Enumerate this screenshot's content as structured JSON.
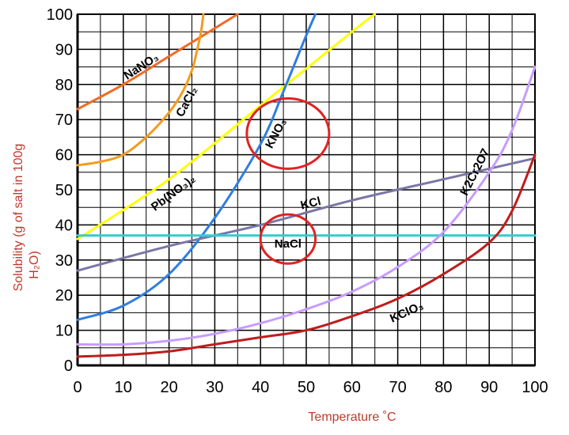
{
  "chart_data": {
    "type": "line",
    "title": "",
    "xlabel": "Temperature ˚C",
    "ylabel_line1": "Solubility (g of salt in 100g",
    "ylabel_line2": "H₂O)",
    "xlim": [
      0,
      100
    ],
    "ylim": [
      0,
      100
    ],
    "x_ticks": [
      "0",
      "10",
      "20",
      "30",
      "40",
      "50",
      "60",
      "70",
      "80",
      "90",
      "100"
    ],
    "y_ticks": [
      "0",
      "10",
      "20",
      "30",
      "40",
      "50",
      "60",
      "70",
      "80",
      "90",
      "100"
    ],
    "grid": true,
    "colors": {
      "NaNO3": "#f26a22",
      "CaCl2": "#f39c1f",
      "Pb(NO3)2": "#ffff00",
      "KNO3": "#2f7de1",
      "KCl": "#7a76a6",
      "NaCl": "#2ecfd0",
      "K2Cr2O7": "#c79cff",
      "KClO3": "#c01c1c",
      "highlight_circle": "#e02222",
      "axis_title": "#c0392b"
    },
    "series": [
      {
        "name": "NaNO3",
        "x": [
          0,
          10,
          20,
          30,
          35
        ],
        "y": [
          73,
          80,
          88,
          96,
          100
        ]
      },
      {
        "name": "CaCl2",
        "x": [
          0,
          5,
          10,
          15,
          20,
          23,
          25,
          26,
          27,
          27.5
        ],
        "y": [
          57,
          58,
          60,
          65,
          72,
          78,
          84,
          89,
          95,
          100
        ]
      },
      {
        "name": "Pb(NO3)2",
        "x": [
          0,
          20,
          40,
          60,
          65
        ],
        "y": [
          36,
          53,
          74,
          95,
          100
        ]
      },
      {
        "name": "KNO3",
        "x": [
          0,
          10,
          20,
          30,
          40,
          45,
          50,
          52
        ],
        "y": [
          13,
          17,
          26,
          42,
          63,
          78,
          94,
          100
        ]
      },
      {
        "name": "KCl",
        "x": [
          0,
          20,
          40,
          60,
          80,
          100
        ],
        "y": [
          27,
          34,
          40,
          47,
          53,
          59
        ]
      },
      {
        "name": "NaCl",
        "x": [
          0,
          100
        ],
        "y": [
          37,
          37
        ]
      },
      {
        "name": "K2Cr2O7",
        "x": [
          0,
          10,
          20,
          30,
          40,
          50,
          60,
          70,
          80,
          90,
          95,
          100
        ],
        "y": [
          6,
          6,
          7,
          9,
          12,
          16,
          21,
          28,
          38,
          55,
          67,
          85
        ]
      },
      {
        "name": "KClO3",
        "x": [
          0,
          10,
          20,
          30,
          40,
          50,
          60,
          70,
          80,
          90,
          95,
          100
        ],
        "y": [
          2.5,
          3,
          4,
          6,
          8,
          10,
          14,
          19,
          26,
          35,
          44,
          60
        ]
      }
    ],
    "annotations": [
      {
        "text": "NaNO₃",
        "series": "NaNO3"
      },
      {
        "text": "CaCl₂",
        "series": "CaCl2"
      },
      {
        "text": "Pb(NO₃)₂",
        "series": "Pb(NO3)2"
      },
      {
        "text": "KNO₃",
        "series": "KNO3"
      },
      {
        "text": "KCl",
        "series": "KCl"
      },
      {
        "text": "NaCl",
        "series": "NaCl"
      },
      {
        "text": "K2Cr2O7",
        "series": "K2Cr2O7"
      },
      {
        "text": "KClO₃",
        "series": "KClO3"
      }
    ],
    "highlight_circles": [
      {
        "label": "KNO3",
        "cx": 46,
        "cy": 66,
        "rx": 9,
        "ry": 10
      },
      {
        "label": "NaCl",
        "cx": 46,
        "cy": 36,
        "rx": 6,
        "ry": 7
      }
    ]
  }
}
